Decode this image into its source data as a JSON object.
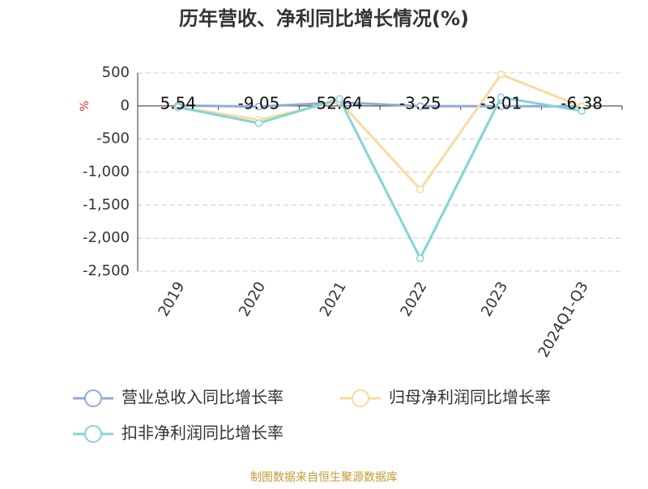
{
  "chart_data": {
    "type": "line",
    "title": "历年营收、净利同比增长情况(%)",
    "y_label": "%",
    "footer": "制图数据来自恒生聚源数据库",
    "categories": [
      "2019",
      "2020",
      "2021",
      "2022",
      "2023",
      "2024Q1-Q3"
    ],
    "ylim": [
      -2500,
      500
    ],
    "yticks": [
      500,
      0,
      -500,
      {
        "value": -1000,
        "label": "-1,000"
      },
      {
        "value": -1500,
        "label": "-1,500"
      },
      {
        "value": -2000,
        "label": "-2,000"
      },
      {
        "value": -2500,
        "label": "-2,500"
      }
    ],
    "grid": true,
    "series": [
      {
        "name": "营业总收入同比增长率",
        "color": "#92aad8",
        "values": [
          5.54,
          -9.05,
          52.64,
          -3.25,
          -3.01,
          -6.38
        ],
        "show_labels": true
      },
      {
        "name": "归母净利润同比增长率",
        "color": "#f8dc9e",
        "values": [
          -15,
          -210,
          70,
          -1263,
          475,
          -10
        ],
        "show_labels": false
      },
      {
        "name": "扣非净利润同比增长率",
        "color": "#84d4d6",
        "values": [
          -20,
          -260,
          105,
          -2305,
          130,
          -75
        ],
        "show_labels": false
      }
    ]
  }
}
